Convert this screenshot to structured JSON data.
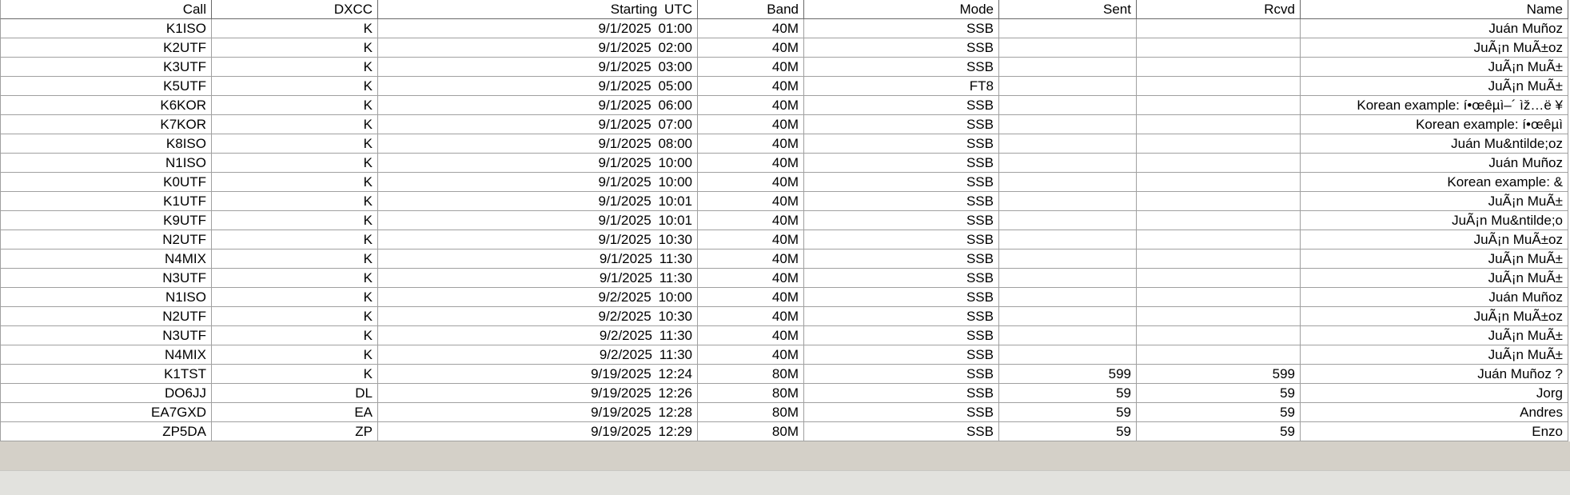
{
  "grid": {
    "columns": [
      "Call",
      "DXCC",
      "Starting UTC",
      "Band",
      "Mode",
      "Sent",
      "Rcvd",
      "Name"
    ],
    "rows": [
      [
        "K1ISO",
        "K",
        "9/1/2025  01:00",
        "40M",
        "SSB",
        "",
        "",
        "Juán Muñoz"
      ],
      [
        "K2UTF",
        "K",
        "9/1/2025  02:00",
        "40M",
        "SSB",
        "",
        "",
        "JuÃ¡n MuÃ±oz"
      ],
      [
        "K3UTF",
        "K",
        "9/1/2025  03:00",
        "40M",
        "SSB",
        "",
        "",
        "JuÃ¡n MuÃ±"
      ],
      [
        "K5UTF",
        "K",
        "9/1/2025  05:00",
        "40M",
        "FT8",
        "",
        "",
        "JuÃ¡n MuÃ±"
      ],
      [
        "K6KOR",
        "K",
        "9/1/2025  06:00",
        "40M",
        "SSB",
        "",
        "",
        "Korean example: í•œêµ­ì–´ ìž…ë ¥"
      ],
      [
        "K7KOR",
        "K",
        "9/1/2025  07:00",
        "40M",
        "SSB",
        "",
        "",
        "Korean example: í•œêµ­ì"
      ],
      [
        "K8ISO",
        "K",
        "9/1/2025  08:00",
        "40M",
        "SSB",
        "",
        "",
        "Juán Mu&ntilde;oz"
      ],
      [
        "N1ISO",
        "K",
        "9/1/2025  10:00",
        "40M",
        "SSB",
        "",
        "",
        "Juán Muñoz"
      ],
      [
        "K0UTF",
        "K",
        "9/1/2025  10:00",
        "40M",
        "SSB",
        "",
        "",
        "Korean example: &"
      ],
      [
        "K1UTF",
        "K",
        "9/1/2025  10:01",
        "40M",
        "SSB",
        "",
        "",
        "JuÃ¡n MuÃ±"
      ],
      [
        "K9UTF",
        "K",
        "9/1/2025  10:01",
        "40M",
        "SSB",
        "",
        "",
        "JuÃ¡n Mu&ntilde;o"
      ],
      [
        "N2UTF",
        "K",
        "9/1/2025  10:30",
        "40M",
        "SSB",
        "",
        "",
        "JuÃ¡n MuÃ±oz"
      ],
      [
        "N4MIX",
        "K",
        "9/1/2025  11:30",
        "40M",
        "SSB",
        "",
        "",
        "JuÃ¡n MuÃ±"
      ],
      [
        "N3UTF",
        "K",
        "9/1/2025  11:30",
        "40M",
        "SSB",
        "",
        "",
        "JuÃ¡n MuÃ±"
      ],
      [
        "N1ISO",
        "K",
        "9/2/2025  10:00",
        "40M",
        "SSB",
        "",
        "",
        "Juán Muñoz"
      ],
      [
        "N2UTF",
        "K",
        "9/2/2025  10:30",
        "40M",
        "SSB",
        "",
        "",
        "JuÃ¡n MuÃ±oz"
      ],
      [
        "N3UTF",
        "K",
        "9/2/2025  11:30",
        "40M",
        "SSB",
        "",
        "",
        "JuÃ¡n MuÃ±"
      ],
      [
        "N4MIX",
        "K",
        "9/2/2025  11:30",
        "40M",
        "SSB",
        "",
        "",
        "JuÃ¡n MuÃ±"
      ],
      [
        "K1TST",
        "K",
        "9/19/2025  12:24",
        "80M",
        "SSB",
        "599",
        "599",
        "Juán Muñoz ?"
      ],
      [
        "DO6JJ",
        "DL",
        "9/19/2025  12:26",
        "80M",
        "SSB",
        "59",
        "59",
        "Jorg"
      ],
      [
        "EA7GXD",
        "EA",
        "9/19/2025  12:28",
        "80M",
        "SSB",
        "59",
        "59",
        "Andres"
      ],
      [
        "ZP5DA",
        "ZP",
        "9/19/2025  12:29",
        "80M",
        "SSB",
        "59",
        "59",
        "Enzo"
      ]
    ]
  }
}
